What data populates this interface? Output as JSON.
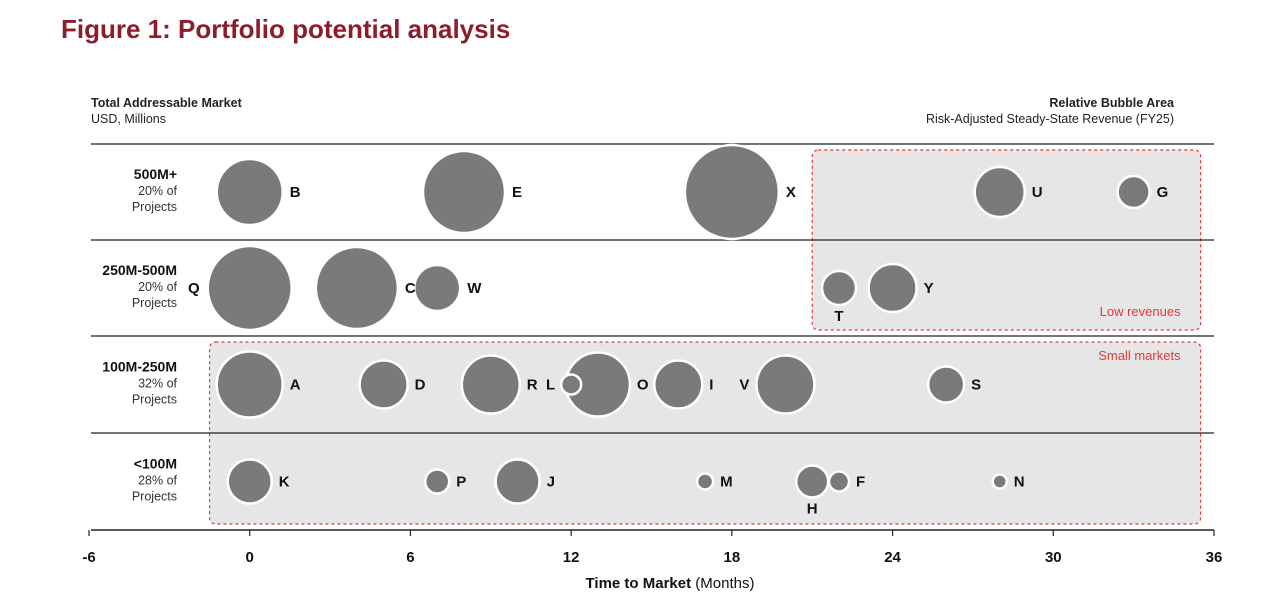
{
  "title": "Figure 1: Portfolio potential analysis",
  "headers": {
    "tam_title": "Total Addressable Market",
    "tam_unit": "USD, Millions",
    "bubble_title": "Relative Bubble Area",
    "bubble_subtitle": "Risk-Adjusted Steady-State Revenue (FY25)"
  },
  "chart_data": {
    "type": "scatter",
    "xlabel_bold": "Time to Market",
    "xlabel_unit": "(Months)",
    "xlim": [
      -6,
      36
    ],
    "x_ticks": [
      "-6",
      "0",
      "6",
      "12",
      "18",
      "24",
      "30",
      "36"
    ],
    "y_categories": [
      {
        "name": "500M+",
        "share_line1": "20% of",
        "share_line2": "Projects"
      },
      {
        "name": "250M-500M",
        "share_line1": "20% of",
        "share_line2": "Projects"
      },
      {
        "name": "100M-250M",
        "share_line1": "32% of",
        "share_line2": "Projects"
      },
      {
        "name": "<100M",
        "share_line1": "28% of",
        "share_line2": "Projects"
      }
    ],
    "zones": [
      {
        "label": "Low revenues",
        "x_range": [
          21,
          35.5
        ],
        "rows": [
          "500M+",
          "250M-500M"
        ]
      },
      {
        "label": "Small markets",
        "x_range": [
          -1.5,
          35.5
        ],
        "rows": [
          "100M-250M",
          "<100M"
        ]
      }
    ],
    "points": [
      {
        "label": "B",
        "x": 0,
        "row": "500M+",
        "size": 33
      },
      {
        "label": "E",
        "x": 8,
        "row": "500M+",
        "size": 41
      },
      {
        "label": "X",
        "x": 18,
        "row": "500M+",
        "size": 47
      },
      {
        "label": "U",
        "x": 28,
        "row": "500M+",
        "size": 25
      },
      {
        "label": "G",
        "x": 33,
        "row": "500M+",
        "size": 16
      },
      {
        "label": "Q",
        "x": 0,
        "row": "250M-500M",
        "size": 42
      },
      {
        "label": "C",
        "x": 4,
        "row": "250M-500M",
        "size": 41
      },
      {
        "label": "W",
        "x": 7,
        "row": "250M-500M",
        "size": 23
      },
      {
        "label": "T",
        "x": 22,
        "row": "250M-500M",
        "size": 17
      },
      {
        "label": "Y",
        "x": 24,
        "row": "250M-500M",
        "size": 24
      },
      {
        "label": "A",
        "x": 0,
        "row": "100M-250M",
        "size": 33
      },
      {
        "label": "D",
        "x": 5,
        "row": "100M-250M",
        "size": 24
      },
      {
        "label": "R",
        "x": 9,
        "row": "100M-250M",
        "size": 29
      },
      {
        "label": "L",
        "x": 12,
        "row": "100M-250M",
        "size": 10
      },
      {
        "label": "O",
        "x": 13,
        "row": "100M-250M",
        "size": 32
      },
      {
        "label": "I",
        "x": 16,
        "row": "100M-250M",
        "size": 24
      },
      {
        "label": "V",
        "x": 20,
        "row": "100M-250M",
        "size": 29
      },
      {
        "label": "S",
        "x": 26,
        "row": "100M-250M",
        "size": 18
      },
      {
        "label": "K",
        "x": 0,
        "row": "<100M",
        "size": 22
      },
      {
        "label": "P",
        "x": 7,
        "row": "<100M",
        "size": 12
      },
      {
        "label": "J",
        "x": 10,
        "row": "<100M",
        "size": 22
      },
      {
        "label": "M",
        "x": 17,
        "row": "<100M",
        "size": 8
      },
      {
        "label": "H",
        "x": 21,
        "row": "<100M",
        "size": 16
      },
      {
        "label": "F",
        "x": 22,
        "row": "<100M",
        "size": 10
      },
      {
        "label": "N",
        "x": 28,
        "row": "<100M",
        "size": 7
      }
    ],
    "bubble_color": "#7a7a7a",
    "zone_fill": "#e6e6e6",
    "zone_border": "#e03a3a"
  }
}
